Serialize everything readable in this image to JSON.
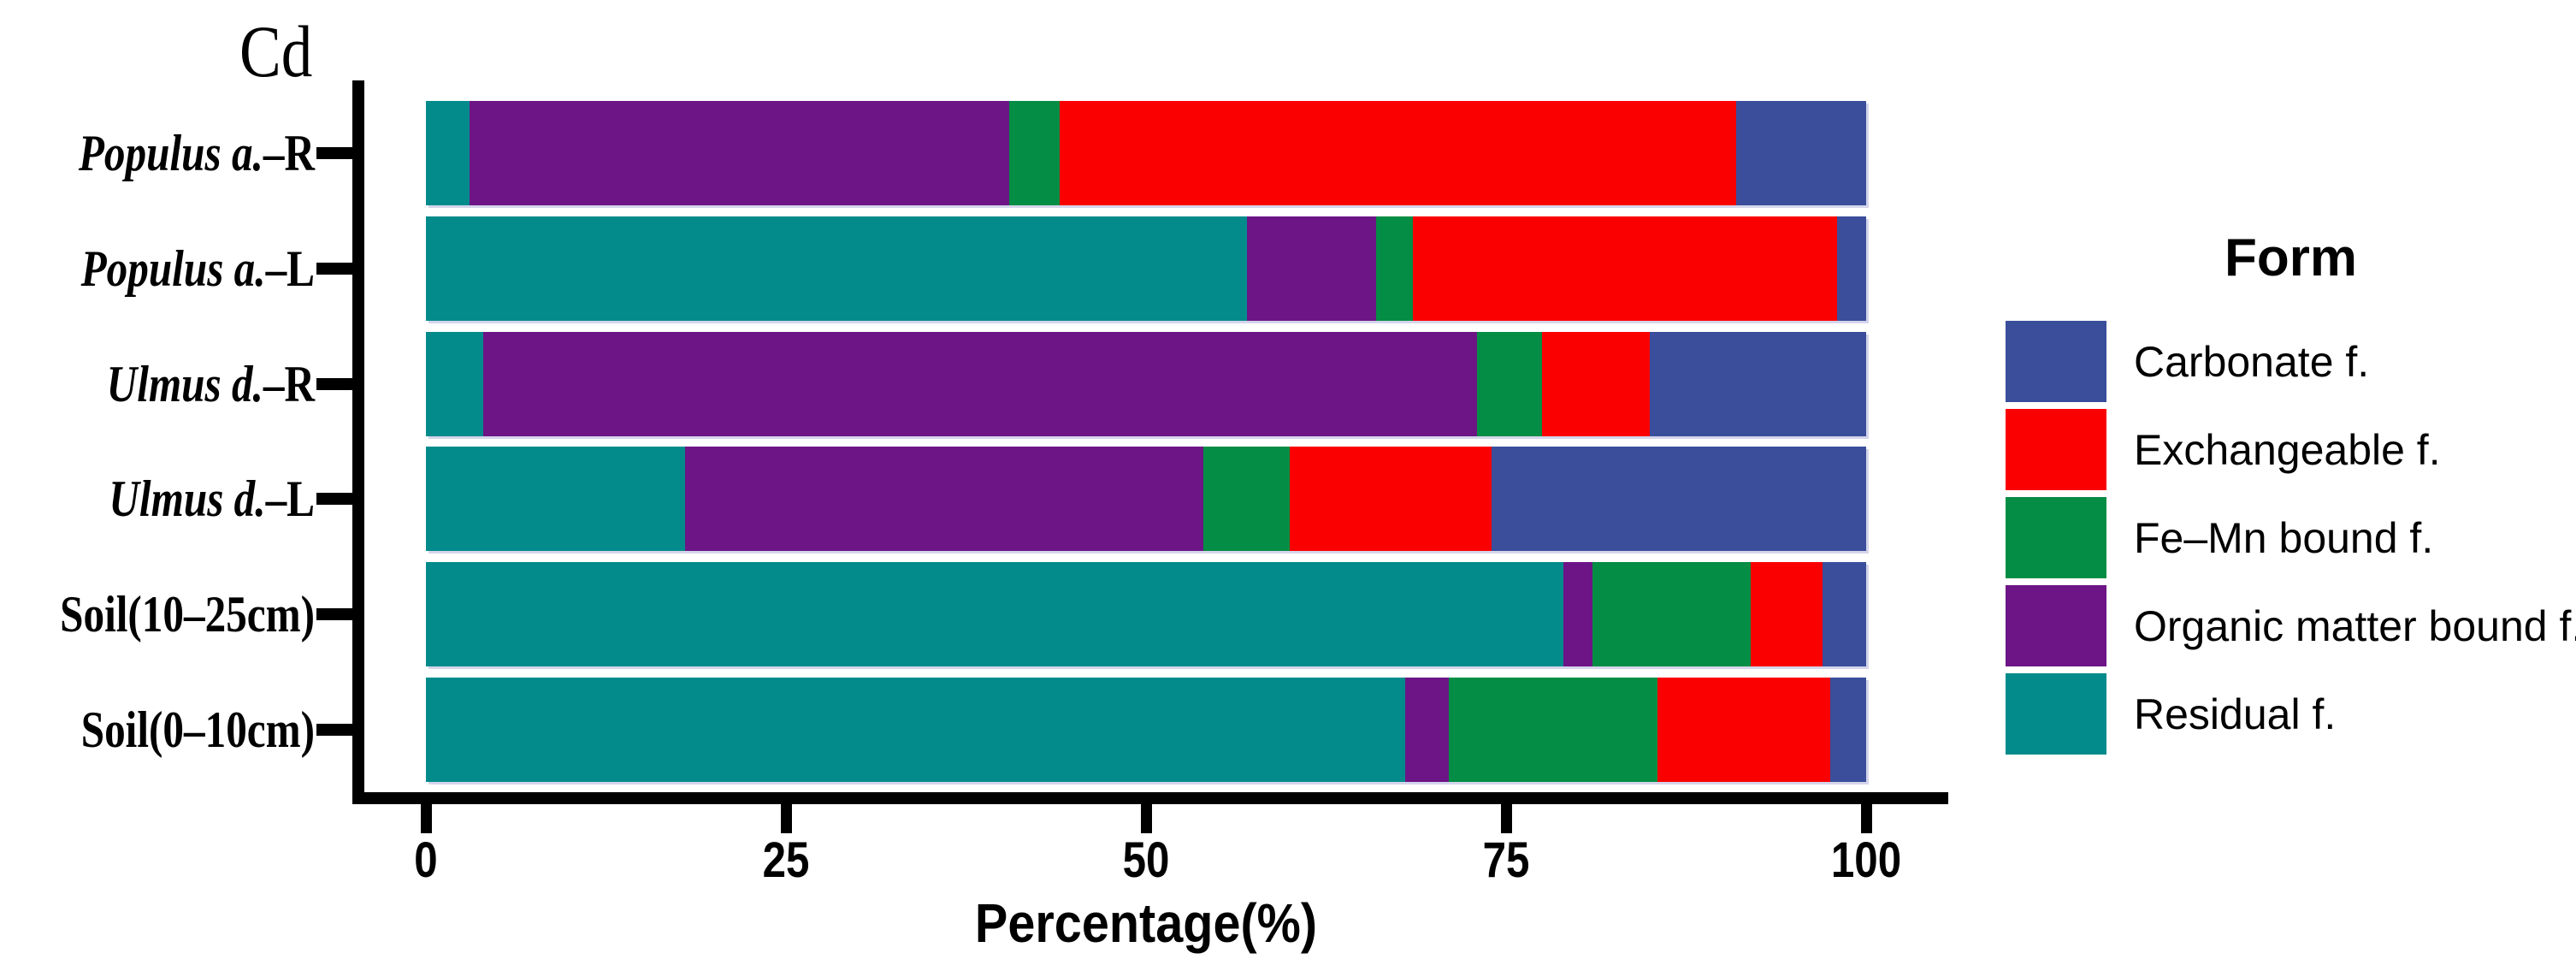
{
  "chart_data": {
    "type": "bar",
    "orientation": "horizontal-stacked",
    "title": "Cd",
    "xlabel": "Percentage(%)",
    "x_ticks": [
      0,
      25,
      50,
      75,
      100
    ],
    "xlim": [
      0,
      105
    ],
    "grid": false,
    "legend_title": "Form",
    "legend_position": "right",
    "categories": [
      "Populus a.–R",
      "Populus a.–L",
      "Ulmus d.–R",
      "Ulmus d.–L",
      "Soil(10–25cm)",
      "Soil(0–10cm)"
    ],
    "category_label_parts": [
      {
        "italic": "Populus a.",
        "roman": "–R"
      },
      {
        "italic": "Populus a.",
        "roman": "–L"
      },
      {
        "italic": "Ulmus d.",
        "roman": "–R"
      },
      {
        "italic": "Ulmus d.",
        "roman": "–L"
      },
      {
        "italic": "",
        "roman": "Soil(10–25cm)"
      },
      {
        "italic": "",
        "roman": "Soil(0–10cm)"
      }
    ],
    "stack_order_left_to_right": [
      "Residual f.",
      "Organic matter bound f.",
      "Fe–Mn bound f.",
      "Exchangeable f.",
      "Carbonate f."
    ],
    "series": [
      {
        "name": "Residual f.",
        "color": "#038B8C",
        "values": [
          3,
          57,
          4,
          18,
          79,
          68
        ]
      },
      {
        "name": "Organic matter bound f.",
        "color": "#6D1586",
        "values": [
          37.5,
          9,
          69,
          36,
          2,
          3
        ]
      },
      {
        "name": "Fe–Mn bound f.",
        "color": "#048D44",
        "values": [
          3.5,
          2.5,
          4.5,
          6,
          11,
          14.5
        ]
      },
      {
        "name": "Exchangeable f.",
        "color": "#FB0000",
        "values": [
          47,
          29.5,
          7.5,
          14,
          5,
          12
        ]
      },
      {
        "name": "Carbonate f.",
        "color": "#3A4E9B",
        "values": [
          9,
          2,
          15,
          26,
          3,
          2.5
        ]
      }
    ],
    "legend_entries": [
      "Carbonate f.",
      "Exchangeable f.",
      "Fe–Mn bound f.",
      "Organic matter bound f.",
      "Residual f."
    ]
  }
}
